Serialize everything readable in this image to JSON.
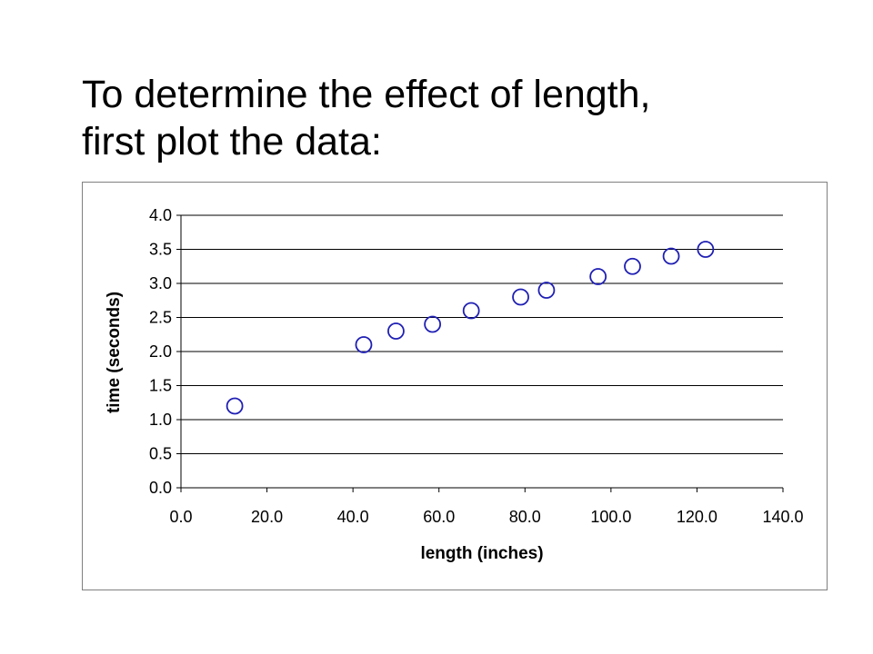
{
  "slide": {
    "title_lines": [
      "To determine the effect of length,",
      "first plot the data:"
    ]
  },
  "colors": {
    "marker": "#1f1fb4",
    "gridline": "#000000",
    "frame": "#808080",
    "background": "#ffffff"
  },
  "chart_data": {
    "type": "scatter",
    "title": "",
    "xlabel": "length (inches)",
    "ylabel": "time (seconds)",
    "xlim": [
      0,
      140
    ],
    "ylim": [
      0,
      4
    ],
    "x_ticks": [
      "0.0",
      "20.0",
      "40.0",
      "60.0",
      "80.0",
      "100.0",
      "120.0",
      "140.0"
    ],
    "y_ticks": [
      "0.0",
      "0.5",
      "1.0",
      "1.5",
      "2.0",
      "2.5",
      "3.0",
      "3.5",
      "4.0"
    ],
    "grid": "horizontal",
    "legend": "none",
    "marker": "open-circle",
    "series": [
      {
        "points": [
          {
            "x": 12.5,
            "y": 1.2
          },
          {
            "x": 42.5,
            "y": 2.1
          },
          {
            "x": 50.0,
            "y": 2.3
          },
          {
            "x": 58.5,
            "y": 2.4
          },
          {
            "x": 67.5,
            "y": 2.6
          },
          {
            "x": 79.0,
            "y": 2.8
          },
          {
            "x": 85.0,
            "y": 2.9
          },
          {
            "x": 97.0,
            "y": 3.1
          },
          {
            "x": 105.0,
            "y": 3.25
          },
          {
            "x": 114.0,
            "y": 3.4
          },
          {
            "x": 122.0,
            "y": 3.5
          }
        ]
      }
    ]
  }
}
